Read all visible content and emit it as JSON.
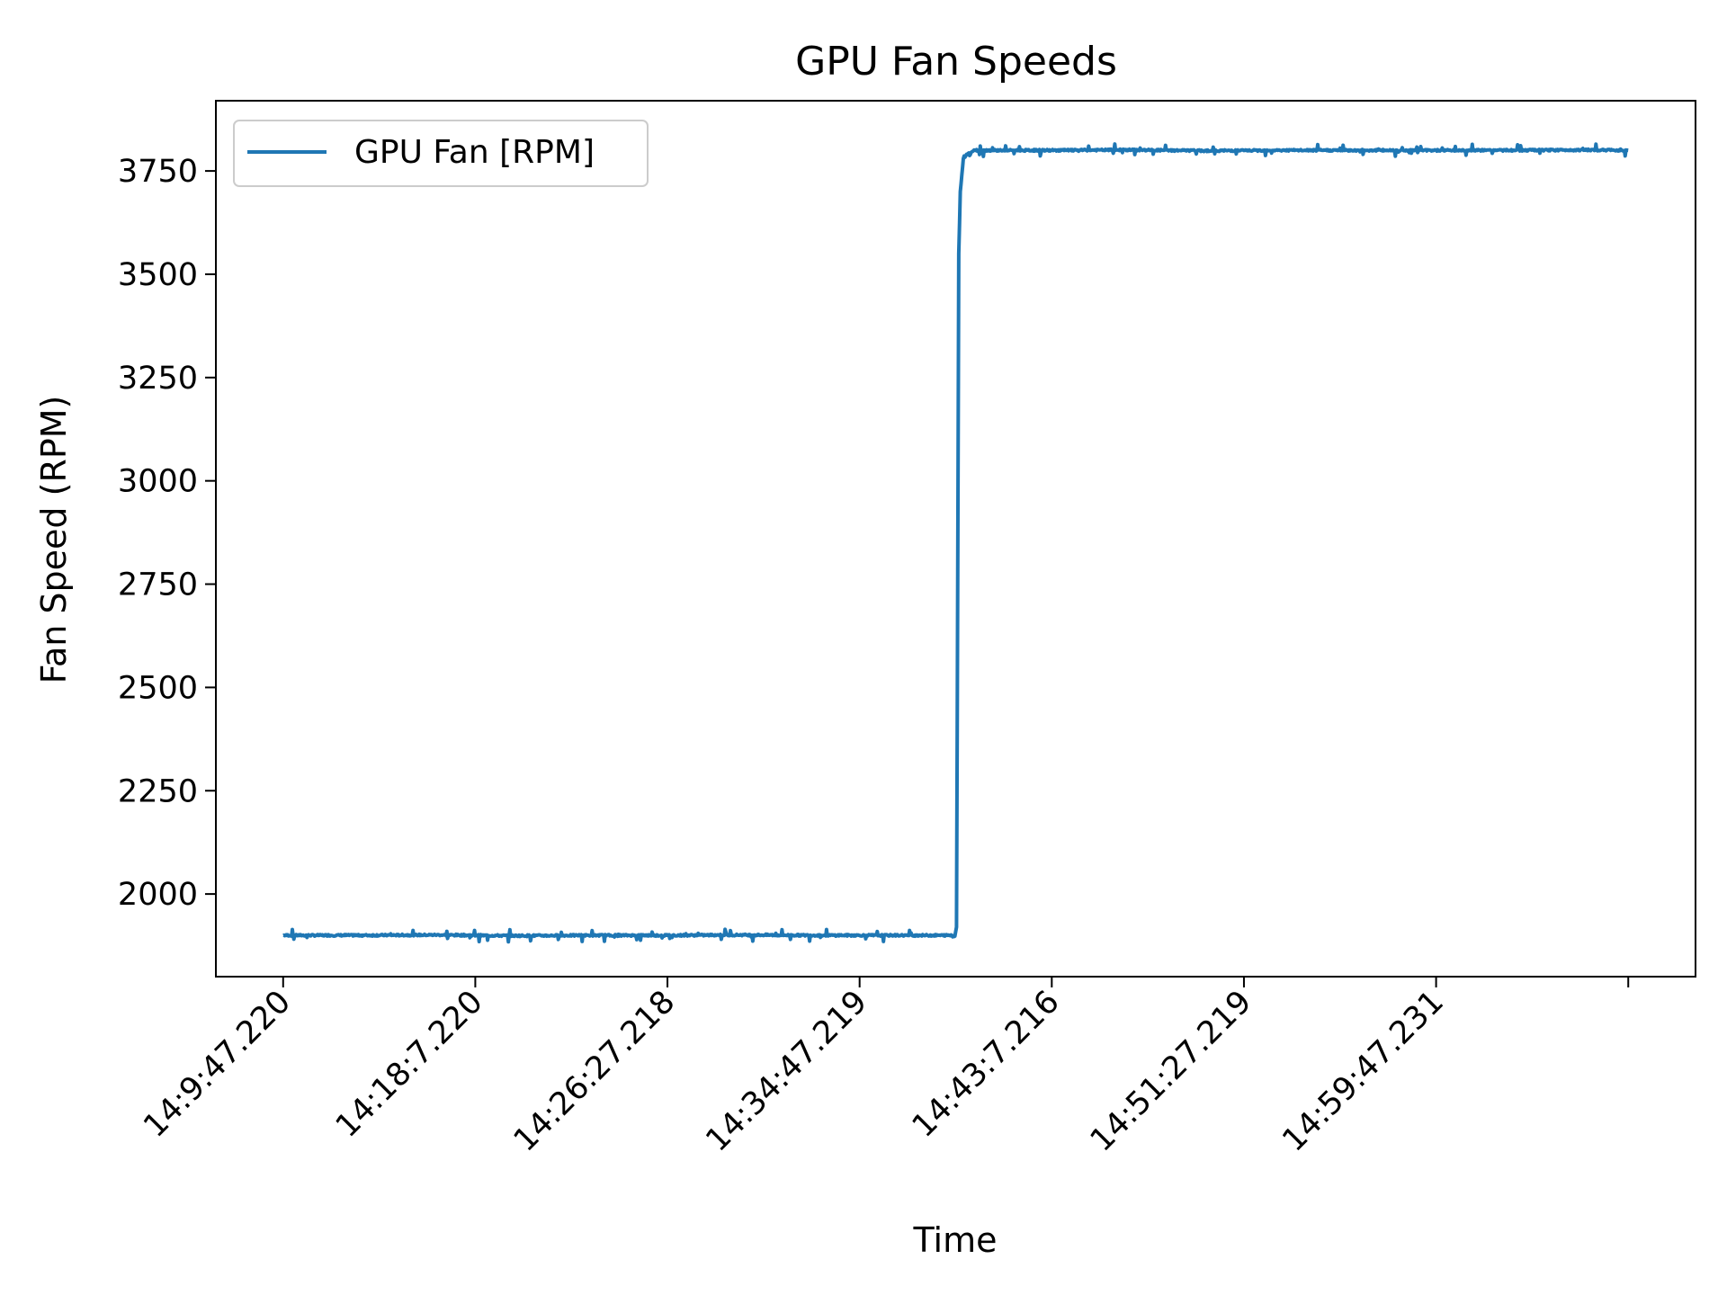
{
  "chart_data": {
    "type": "line",
    "title": "GPU Fan Speeds",
    "xlabel": "Time",
    "ylabel": "Fan Speed (RPM)",
    "legend": {
      "position": "top-left",
      "entries": [
        "GPU Fan [RPM]"
      ]
    },
    "grid": false,
    "x_ticks": [
      "14:9:47.220",
      "14:18:7.220",
      "14:26:27.218",
      "14:34:47.219",
      "14:43:7.216",
      "14:51:27.219",
      "14:59:47.231"
    ],
    "x_tick_seconds": [
      0,
      500,
      1000,
      1500,
      2000,
      2500,
      3000
    ],
    "y_ticks": [
      2000,
      2250,
      2500,
      2750,
      3000,
      3250,
      3500,
      3750
    ],
    "xlim_seconds": [
      -175,
      3675
    ],
    "ylim": [
      1800,
      3920
    ],
    "colors": {
      "series": "#1f77b4"
    },
    "series": [
      {
        "name": "GPU Fan [RPM]",
        "x_seconds": [
          0,
          200,
          400,
          600,
          800,
          1000,
          1200,
          1400,
          1600,
          1740,
          1748,
          1752,
          1754,
          1756,
          1758,
          1762,
          1770,
          1778,
          1800,
          1900,
          2000,
          2200,
          2400,
          2600,
          2800,
          3000,
          3200,
          3400,
          3500
        ],
        "values": [
          1900,
          1900,
          1901,
          1899,
          1900,
          1900,
          1901,
          1900,
          1900,
          1900,
          1898,
          1920,
          2400,
          3000,
          3550,
          3700,
          3780,
          3790,
          3800,
          3800,
          3800,
          3801,
          3799,
          3800,
          3800,
          3800,
          3800,
          3801,
          3800
        ]
      }
    ]
  }
}
